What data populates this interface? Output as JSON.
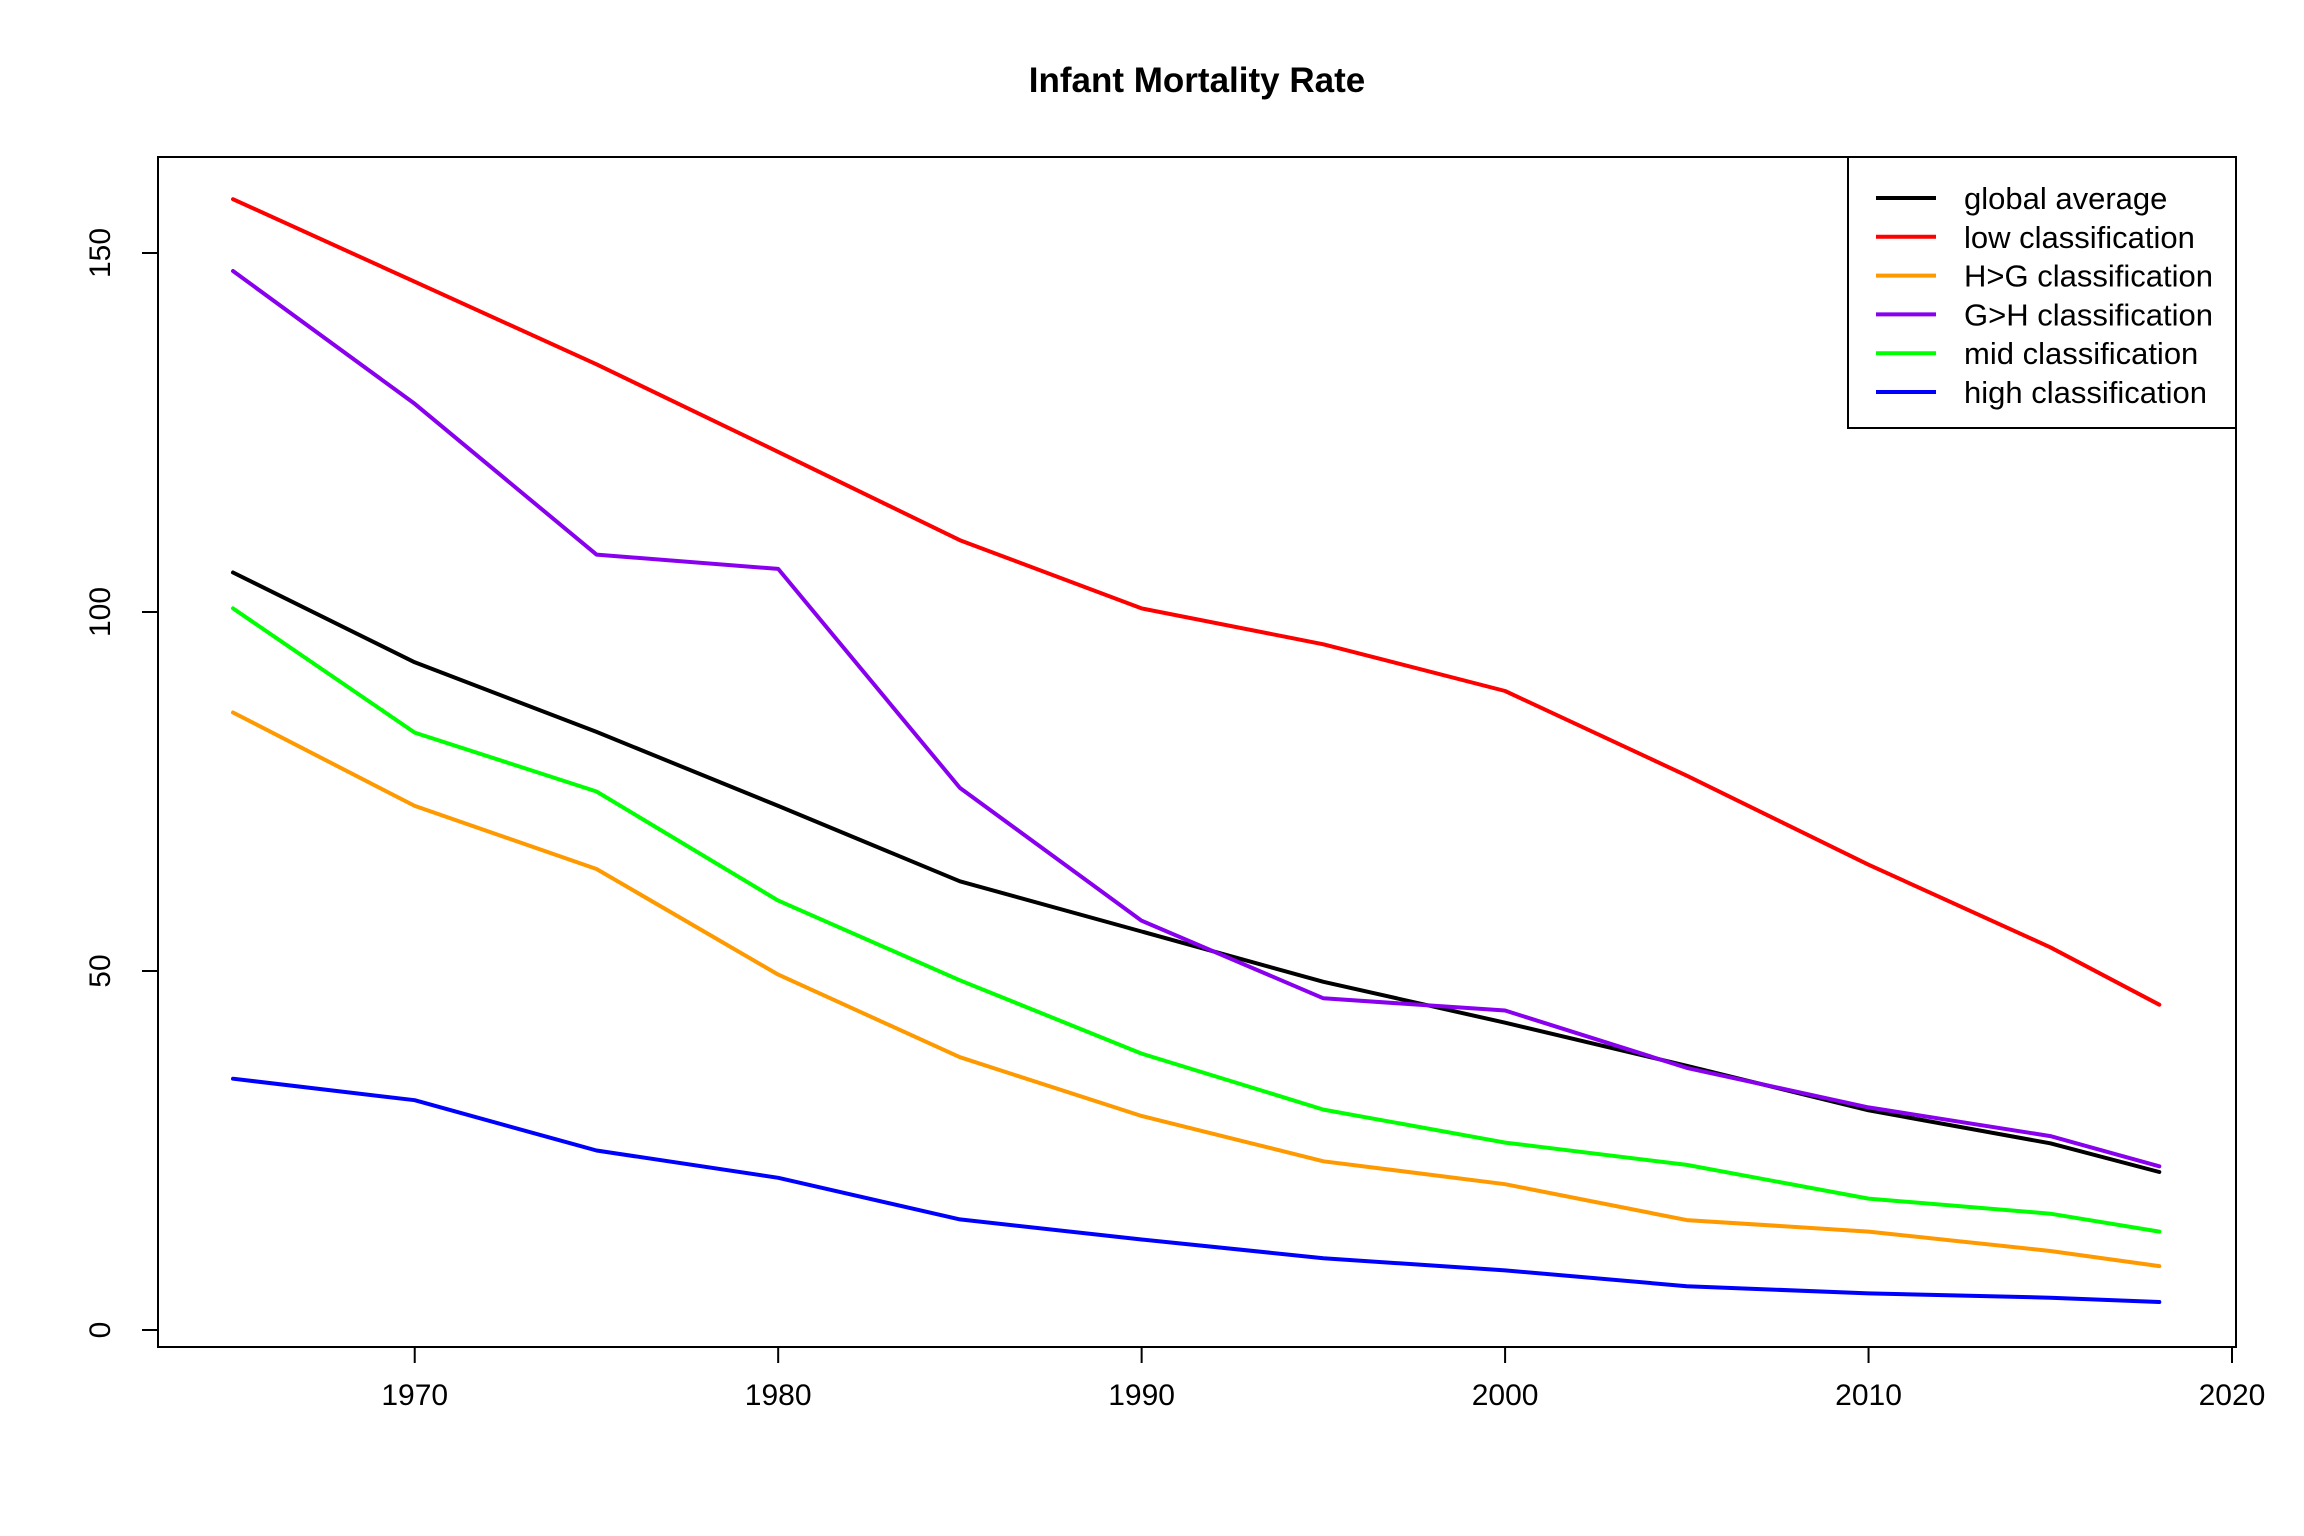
{
  "chart_data": {
    "type": "line",
    "title": "Infant Mortality Rate",
    "xlabel": "",
    "ylabel": "",
    "xlim": [
      1962.8,
      2020
    ],
    "ylim": [
      -2,
      164
    ],
    "x_ticks": [
      1970,
      1980,
      1990,
      2000,
      2010,
      2020
    ],
    "y_ticks": [
      0,
      50,
      100,
      150
    ],
    "grid": false,
    "legend_position": "top-right",
    "x": [
      1965,
      1970,
      1975,
      1980,
      1985,
      1990,
      1995,
      2000,
      2005,
      2010,
      2015,
      2018
    ],
    "series": [
      {
        "name": "global average",
        "color": "#000000",
        "values": [
          105.5,
          93,
          83.3,
          73,
          62.5,
          55.5,
          48.5,
          42.8,
          36.8,
          30.6,
          26,
          22
        ]
      },
      {
        "name": "low classification",
        "color": "#ff0000",
        "values": [
          157.5,
          146,
          134.5,
          122.3,
          110,
          100.5,
          95.5,
          89,
          77.2,
          64.8,
          53.3,
          45.3
        ]
      },
      {
        "name": "H>G classification",
        "color": "#ff9900",
        "values": [
          86,
          73,
          64.2,
          49.5,
          38,
          29.8,
          23.5,
          20.3,
          15.3,
          13.7,
          11,
          8.9
        ]
      },
      {
        "name": "G>H classification",
        "color": "#8800ee",
        "values": [
          147.5,
          129,
          108,
          106,
          75.5,
          57,
          46.2,
          44.5,
          36.5,
          31,
          27,
          22.8
        ]
      },
      {
        "name": "mid classification",
        "color": "#00ff00",
        "values": [
          100.5,
          83.2,
          75,
          59.8,
          48.7,
          38.5,
          30.7,
          26.1,
          23,
          18.3,
          16.2,
          13.7
        ]
      },
      {
        "name": "high classification",
        "color": "#0000ff",
        "values": [
          35,
          32,
          25,
          21.2,
          15.4,
          12.6,
          10,
          8.3,
          6.1,
          5.1,
          4.5,
          3.9
        ]
      }
    ]
  }
}
